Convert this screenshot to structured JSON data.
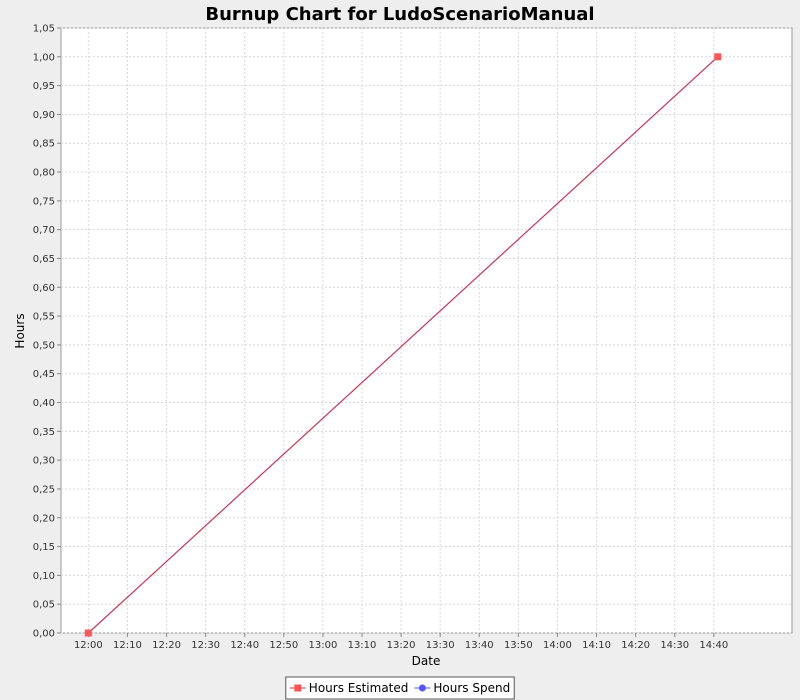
{
  "chart_data": {
    "type": "line",
    "title": "Burnup Chart for LudoScenarioManual",
    "xlabel": "Date",
    "ylabel": "Hours",
    "x_ticks": [
      "12:00",
      "12:10",
      "12:20",
      "12:30",
      "12:40",
      "12:50",
      "13:00",
      "13:10",
      "13:20",
      "13:30",
      "13:40",
      "13:50",
      "14:00",
      "14:10",
      "14:20",
      "14:30",
      "14:40"
    ],
    "y_ticks": [
      "0,00",
      "0,05",
      "0,10",
      "0,15",
      "0,20",
      "0,25",
      "0,30",
      "0,35",
      "0,40",
      "0,45",
      "0,50",
      "0,55",
      "0,60",
      "0,65",
      "0,70",
      "0,75",
      "0,80",
      "0,85",
      "0,90",
      "0,95",
      "1,00",
      "1,05"
    ],
    "xlim": [
      "11:53",
      "15:00"
    ],
    "ylim": [
      0,
      1.05
    ],
    "grid": true,
    "legend_position": "bottom",
    "series": [
      {
        "name": "Hours Estimated",
        "color": "#ff5555",
        "line_color": "#cc3355",
        "marker": "square",
        "points": [
          {
            "x": "12:00",
            "y": 0.0
          },
          {
            "x": "14:41",
            "y": 1.0
          }
        ]
      },
      {
        "name": "Hours Spend",
        "color": "#5555ff",
        "marker": "circle",
        "points": []
      }
    ]
  }
}
